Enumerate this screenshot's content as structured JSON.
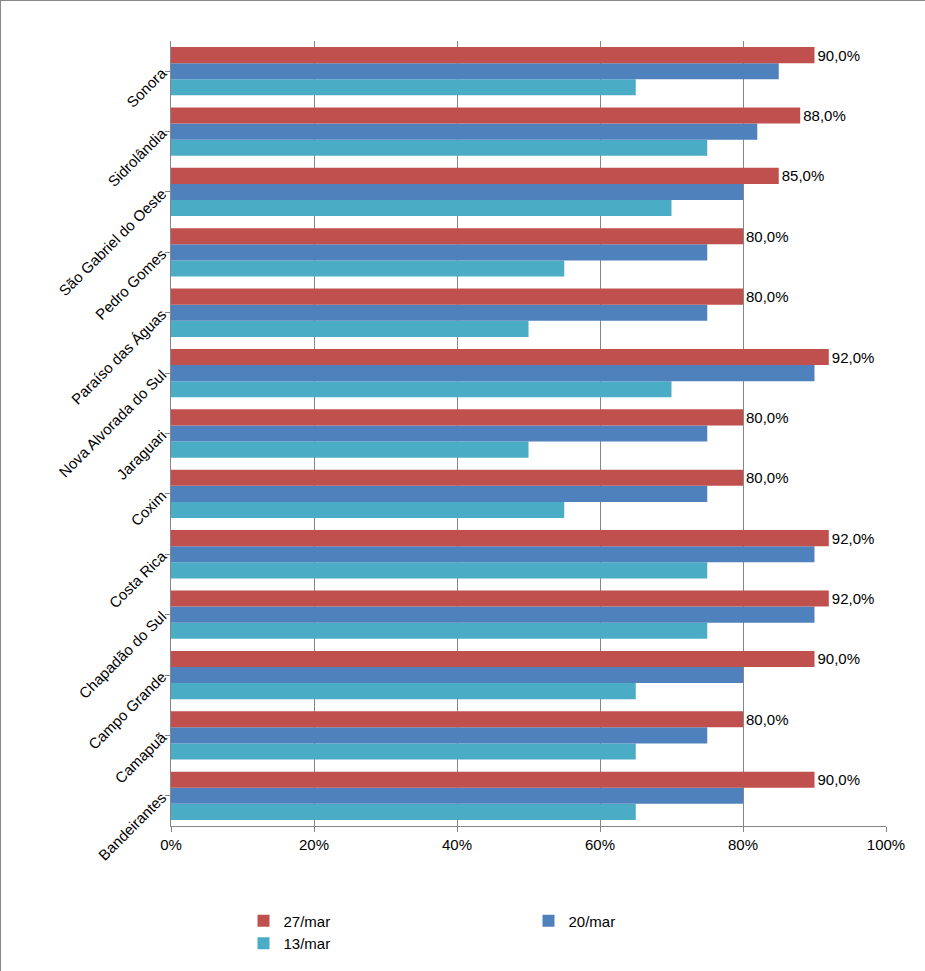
{
  "chart_data": {
    "type": "bar",
    "orientation": "horizontal",
    "categories": [
      "Bandeirantes",
      "Camapuã",
      "Campo Grande",
      "Chapadão do Sul",
      "Costa Rica",
      "Coxim",
      "Jaraguari",
      "Nova Alvorada do Sul",
      "Paraíso das Águas",
      "Pedro Gomes",
      "São Gabriel do Oeste",
      "Sidrolândia",
      "Sonora"
    ],
    "series": [
      {
        "name": "27/mar",
        "color": "#C0504D",
        "values": [
          90,
          80,
          90,
          92,
          92,
          80,
          80,
          92,
          80,
          80,
          85,
          88,
          90
        ],
        "value_labels": [
          "90,0%",
          "80,0%",
          "90,0%",
          "92,0%",
          "92,0%",
          "80,0%",
          "80,0%",
          "92,0%",
          "80,0%",
          "80,0%",
          "85,0%",
          "88,0%",
          "90,0%"
        ]
      },
      {
        "name": "20/mar",
        "color": "#4F81BD",
        "values": [
          80,
          75,
          80,
          90,
          90,
          75,
          75,
          90,
          75,
          75,
          80,
          82,
          85
        ]
      },
      {
        "name": "13/mar",
        "color": "#4BACC6",
        "values": [
          65,
          65,
          65,
          75,
          75,
          55,
          50,
          70,
          50,
          55,
          70,
          75,
          65
        ]
      }
    ],
    "xlim": [
      0,
      100
    ],
    "xticks": [
      {
        "value": 0,
        "label": "0%"
      },
      {
        "value": 20,
        "label": "20%"
      },
      {
        "value": 40,
        "label": "40%"
      },
      {
        "value": 60,
        "label": "60%"
      },
      {
        "value": 80,
        "label": "80%"
      },
      {
        "value": 100,
        "label": "100%"
      }
    ],
    "grid": true,
    "legend": "bottom",
    "data_labels": true
  }
}
